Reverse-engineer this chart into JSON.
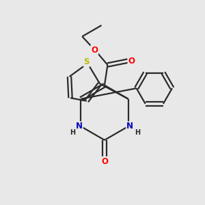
{
  "background_color": "#e8e8e8",
  "bond_color": "#2a2a2a",
  "bond_width": 1.6,
  "atom_colors": {
    "O": "#ff0000",
    "N": "#0000bb",
    "S": "#bbbb00",
    "C": "#2a2a2a",
    "H": "#2a2a2a"
  },
  "font_size_atom": 8.5,
  "font_size_H": 7.0,
  "xlim": [
    0,
    10
  ],
  "ylim": [
    0,
    10
  ]
}
